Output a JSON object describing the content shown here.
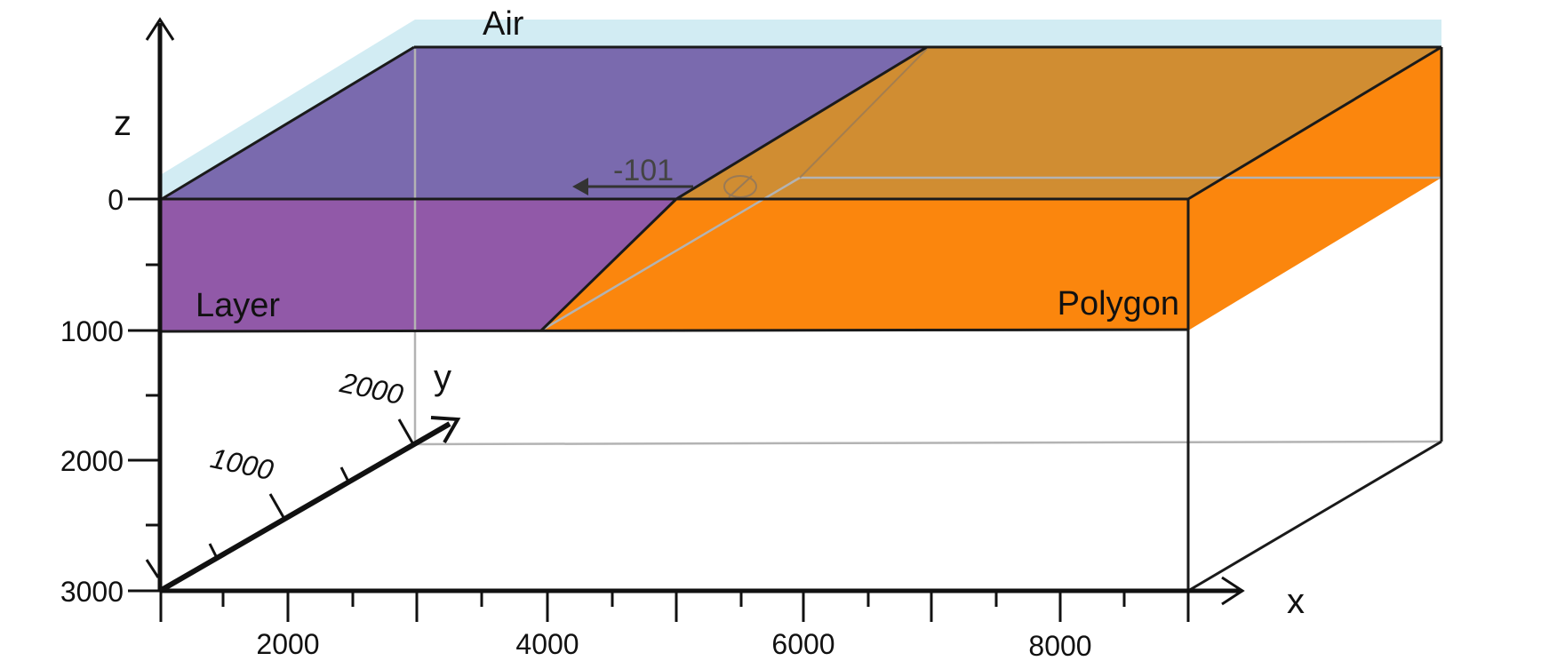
{
  "regions": {
    "air": "Air",
    "layer": "Layer",
    "polygon": "Polygon"
  },
  "axes": {
    "x": {
      "name": "x",
      "ticks": [
        "2000",
        "4000",
        "6000",
        "8000"
      ]
    },
    "y": {
      "name": "y",
      "ticks": [
        "1000",
        "2000"
      ]
    },
    "z": {
      "name": "z",
      "ticks": [
        "0",
        "1000",
        "2000",
        "3000"
      ]
    }
  },
  "annotation": {
    "value": "-101"
  },
  "colors": {
    "air": "#d2ecf3",
    "layer_front": "#9159a8",
    "layer_top": "#7a6aae",
    "polygon_front": "#fb860d",
    "polygon_top": "#d08d32",
    "polygon_side": "#fb860d",
    "outline": "#1a1a1a",
    "hidden_edge": "#b3b3b3"
  }
}
